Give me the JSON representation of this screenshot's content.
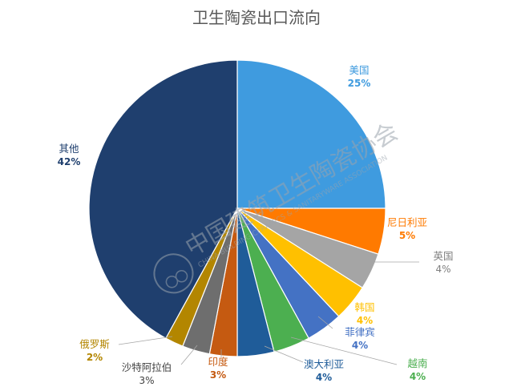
{
  "chart_data": {
    "type": "pie",
    "title": "卫生陶瓷出口流向",
    "slices": [
      {
        "name": "美国",
        "value": 25,
        "label": "25%",
        "color": "#3F9BDF"
      },
      {
        "name": "尼日利亚",
        "value": 5,
        "label": "5%",
        "color": "#FF7A00"
      },
      {
        "name": "英国",
        "value": 4,
        "label": "4%",
        "color": "#A5A5A5"
      },
      {
        "name": "韩国",
        "value": 4,
        "label": "4%",
        "color": "#FFC000"
      },
      {
        "name": "菲律宾",
        "value": 4,
        "label": "4%",
        "color": "#4472C4"
      },
      {
        "name": "越南",
        "value": 4,
        "label": "4%",
        "color": "#4CAF50"
      },
      {
        "name": "澳大利亚",
        "value": 4,
        "label": "4%",
        "color": "#1F5C99"
      },
      {
        "name": "印度",
        "value": 3,
        "label": "3%",
        "color": "#C55A11"
      },
      {
        "name": "沙特阿拉伯",
        "value": 3,
        "label": "3%",
        "color": "#6E6E6E"
      },
      {
        "name": "俄罗斯",
        "value": 2,
        "label": "2%",
        "color": "#B38600"
      },
      {
        "name": "其他",
        "value": 42,
        "label": "42%",
        "color": "#1F3F6E"
      }
    ]
  },
  "watermark": {
    "text_cn": "中国建筑卫生陶瓷协会",
    "text_en": "CHINA BUILDING CERAMICS & SANITARYWARE ASSOCIATION"
  }
}
